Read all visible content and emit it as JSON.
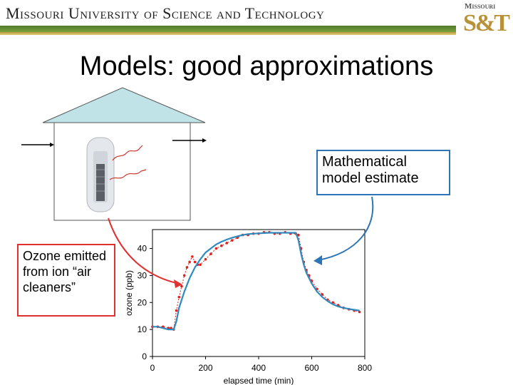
{
  "header": {
    "university": "Missouri University of Science and Technology",
    "logo_top": "Missouri",
    "logo_main": "S&T"
  },
  "slide": {
    "title": "Models: good approximations"
  },
  "callouts": {
    "model": "Mathematical model estimate",
    "ozone": "Ozone emitted from ion “air cleaners”"
  },
  "colors": {
    "model_line": "#2e8bc0",
    "measured": "#e0201b",
    "house_roof": "#bfe3e6",
    "header_green": "#5a8a2e",
    "header_gold": "#cbb060"
  },
  "chart_data": {
    "type": "line",
    "xlabel": "elapsed time (min)",
    "ylabel": "ozone (ppb)",
    "xlim": [
      0,
      800
    ],
    "ylim": [
      0,
      47
    ],
    "xticks": [
      0,
      200,
      400,
      600,
      800
    ],
    "yticks": [
      0,
      10,
      20,
      30,
      40
    ],
    "grid": false,
    "series": [
      {
        "color": "#e0201b",
        "style": "markers",
        "x": [
          0,
          20,
          40,
          60,
          70,
          80,
          90,
          100,
          110,
          120,
          130,
          140,
          150,
          160,
          170,
          180,
          200,
          220,
          240,
          260,
          280,
          300,
          320,
          340,
          360,
          380,
          400,
          420,
          440,
          460,
          480,
          500,
          520,
          540,
          550,
          560,
          570,
          580,
          590,
          600,
          620,
          640,
          660,
          680,
          700,
          720,
          740,
          760,
          780
        ],
        "y": [
          11,
          11,
          11,
          10.5,
          10.5,
          10,
          17,
          22,
          26,
          30,
          33,
          35,
          37,
          35,
          34,
          34,
          36,
          38,
          40,
          41,
          42,
          43,
          44,
          45,
          45,
          45.5,
          45.5,
          46,
          46,
          45.5,
          45.5,
          46,
          45.5,
          45.5,
          45,
          40,
          35,
          32,
          30,
          28,
          25,
          23,
          21,
          20,
          19,
          18,
          17.5,
          17,
          16.5
        ]
      },
      {
        "color": "#2e8bc0",
        "style": "line",
        "x": [
          0,
          20,
          40,
          60,
          80,
          90,
          100,
          120,
          140,
          160,
          180,
          200,
          220,
          240,
          260,
          280,
          300,
          320,
          340,
          360,
          380,
          400,
          420,
          440,
          460,
          480,
          500,
          520,
          540,
          550,
          560,
          570,
          580,
          600,
          620,
          640,
          660,
          680,
          700,
          720,
          740,
          760,
          780
        ],
        "y": [
          11,
          11,
          10.5,
          10,
          10,
          13,
          18,
          24,
          29,
          33,
          36,
          38.5,
          40,
          41.5,
          42.5,
          43.3,
          44,
          44.5,
          45,
          45.3,
          45.5,
          45.6,
          45.7,
          45.8,
          45.8,
          45.8,
          45.8,
          45.8,
          45.8,
          43,
          38,
          34,
          31,
          27,
          24,
          22,
          20.5,
          19.3,
          18.5,
          18,
          17.6,
          17.3,
          17
        ]
      }
    ]
  }
}
